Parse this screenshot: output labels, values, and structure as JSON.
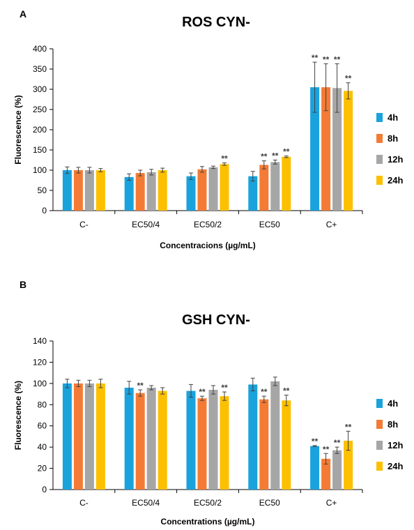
{
  "series_colors": [
    "#1aa2dc",
    "#f47b35",
    "#a6a6a6",
    "#fcc000"
  ],
  "chart_data": [
    {
      "type": "bar",
      "panel": "A",
      "title": "ROS CYN-",
      "ylabel": "Fluorescence (%)",
      "xlabel": "Concentracions (µg/mL)",
      "ylim": [
        0,
        400
      ],
      "yticks": [
        0,
        50,
        100,
        150,
        200,
        250,
        300,
        350,
        400
      ],
      "categories": [
        "C-",
        "EC50/4",
        "EC50/2",
        "EC50",
        "C+"
      ],
      "legend_position": "right",
      "grid": false,
      "series": [
        {
          "name": "4h",
          "values": [
            100,
            83,
            85,
            85,
            305
          ],
          "errors": [
            8,
            8,
            8,
            12,
            62
          ],
          "stars": [
            "",
            "",
            "",
            "",
            "**"
          ]
        },
        {
          "name": "8h",
          "values": [
            100,
            93,
            102,
            113,
            305
          ],
          "errors": [
            7,
            7,
            7,
            10,
            58
          ],
          "stars": [
            "",
            "",
            "",
            "**",
            "**"
          ]
        },
        {
          "name": "12h",
          "values": [
            100,
            95,
            107,
            120,
            303
          ],
          "errors": [
            7,
            7,
            3,
            5,
            60
          ],
          "stars": [
            "",
            "",
            "",
            "**",
            "**"
          ]
        },
        {
          "name": "24h",
          "values": [
            100,
            100,
            115,
            133,
            296
          ],
          "errors": [
            4,
            5,
            3,
            2,
            20
          ],
          "stars": [
            "",
            "",
            "**",
            "**",
            "**"
          ]
        }
      ]
    },
    {
      "type": "bar",
      "panel": "B",
      "title": "GSH CYN-",
      "ylabel": "Fluorescence (%)",
      "xlabel": "Concentrations (µg/mL)",
      "ylim": [
        0,
        140
      ],
      "yticks": [
        0,
        20,
        40,
        60,
        80,
        100,
        120,
        140
      ],
      "categories": [
        "C-",
        "EC50/4",
        "EC50/2",
        "EC50",
        "C+"
      ],
      "legend_position": "right",
      "grid": false,
      "series": [
        {
          "name": "4h",
          "values": [
            100,
            96,
            93,
            99,
            41
          ],
          "errors": [
            4,
            6,
            6,
            6,
            0.5
          ],
          "stars": [
            "",
            "",
            "",
            "",
            "**"
          ]
        },
        {
          "name": "8h",
          "values": [
            100,
            91,
            86,
            85,
            29
          ],
          "errors": [
            3,
            3,
            2,
            3,
            5
          ],
          "stars": [
            "",
            "**",
            "**",
            "**",
            "**"
          ]
        },
        {
          "name": "12h",
          "values": [
            100,
            96,
            94,
            102,
            37
          ],
          "errors": [
            3,
            2,
            4,
            4,
            3
          ],
          "stars": [
            "",
            "",
            "",
            "",
            "**"
          ]
        },
        {
          "name": "24h",
          "values": [
            100,
            93,
            88,
            84,
            46
          ],
          "errors": [
            4,
            3,
            4,
            5,
            9
          ],
          "stars": [
            "",
            "",
            "**",
            "**",
            "**"
          ]
        }
      ]
    }
  ]
}
